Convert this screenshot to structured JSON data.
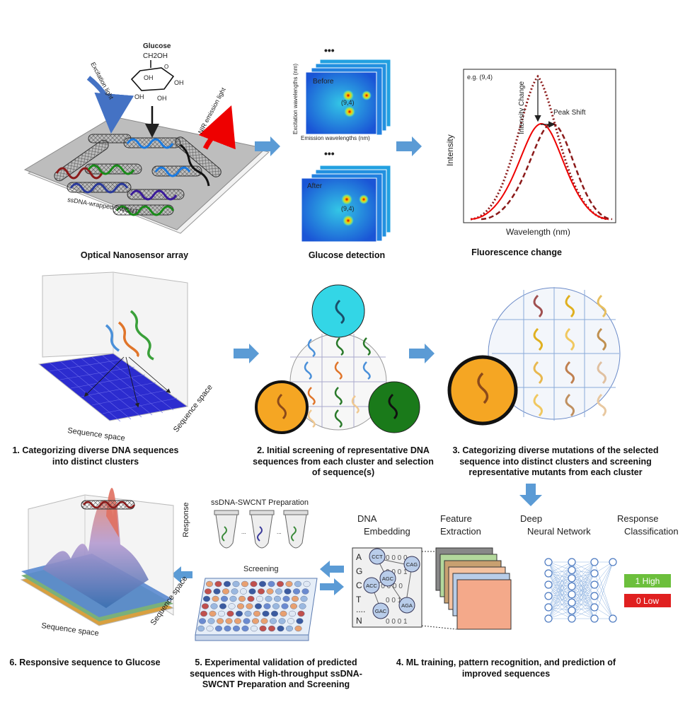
{
  "panel1": {
    "caption": "Optical Nanosensor array",
    "glucose": "Glucose",
    "ch2oh": "CH2OH",
    "oh": "OH",
    "excitation": "Excitation light",
    "nir": "NIR emission light",
    "substrate": "ssDNA-wrapped SWCNT"
  },
  "panel2": {
    "caption": "Glucose detection",
    "before": "Before",
    "after": "After",
    "peak": "(9,4)",
    "ylabel": "Excitation wavelengths (nm)",
    "xlabel": "Emission wavelengths (nm)",
    "dots": "•••"
  },
  "panel3": {
    "caption": "Fluorescence change",
    "example": "e.g. (9,4)",
    "intensity_change": "Intensity Change",
    "peak_shift": "Peak Shift",
    "ylabel": "Intensity",
    "xlabel": "Wavelength (nm)"
  },
  "step1": {
    "caption": "1. Categorizing diverse DNA sequences into distinct clusters",
    "axis_x": "Sequence space",
    "axis_y": "Sequence space"
  },
  "step2": {
    "caption": "2. Initial screening of representative DNA sequences from each cluster and selection of sequence(s)"
  },
  "step3": {
    "caption": "3. Categorizing diverse mutations of the selected sequence into distinct clusters and screening representative mutants from each cluster"
  },
  "step4": {
    "caption": "4. ML training, pattern recognition, and prediction of improved sequences",
    "dna_embedding": "DNA Embedding",
    "feature_extraction": "Feature Extraction",
    "dnn": "Deep Neural Network",
    "response_classification": "Response Classification",
    "high": "1 High",
    "low": "0 Low",
    "letters": [
      "A",
      "G",
      "C",
      "T",
      "....",
      "N"
    ],
    "codons": [
      "CCT",
      "CAG",
      "AGC",
      "ACC",
      "GAC",
      "AGA"
    ]
  },
  "step5": {
    "caption": "5. Experimental validation of predicted sequences with High-throughput ssDNA-SWCNT Preparation and Screening",
    "prep": "ssDNA-SWCNT Preparation",
    "screening": "Screening"
  },
  "step6": {
    "caption": "6. Responsive sequence to Glucose",
    "response": "Response",
    "axis_x": "Sequence space",
    "axis_y": "Sequence space"
  },
  "colors": {
    "arrow": "#5b9bd5",
    "cyan": "#33d6e6",
    "orange": "#f5a623",
    "green": "#1a7a1a",
    "high": "#6cbf3c",
    "low": "#e02020"
  }
}
